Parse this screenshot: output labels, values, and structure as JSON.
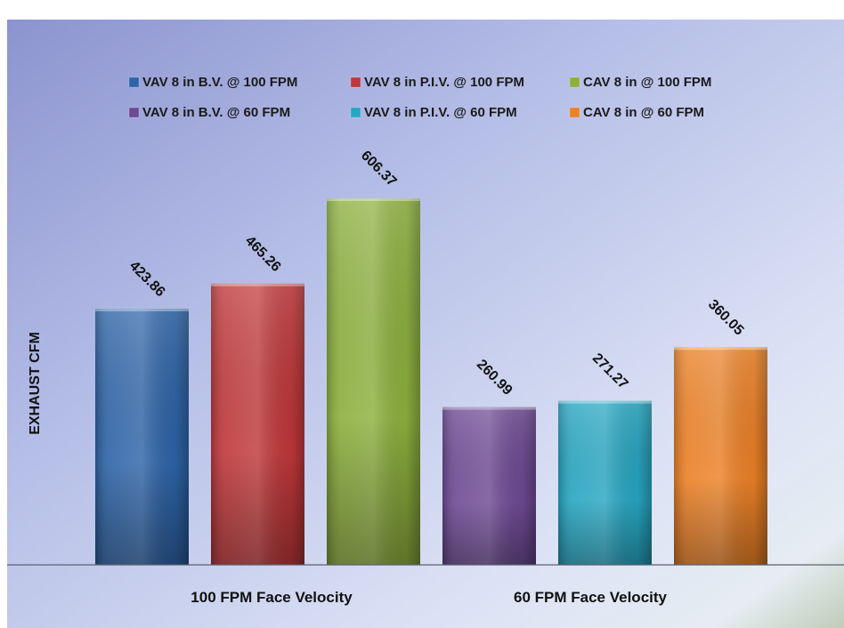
{
  "chart_data": {
    "type": "bar",
    "title": "",
    "xlabel": "",
    "ylabel": "EXHAUST   CFM",
    "categories": [
      "100 FPM Face Velocity",
      "60 FPM Face Velocity"
    ],
    "ylim": [
      0,
      700
    ],
    "grid": false,
    "legend_position": "top",
    "series": [
      {
        "name": "VAV 8 in B.V. @ 100 FPM",
        "color": "#2E64A8",
        "values": [
          423.86,
          null
        ],
        "label": "423.86"
      },
      {
        "name": "VAV 8 in P.I.V. @ 100 FPM",
        "color": "#C0383A",
        "values": [
          465.26,
          null
        ],
        "label": "465.26"
      },
      {
        "name": "CAV 8 in @ 100 FPM",
        "color": "#8DB03D",
        "values": [
          606.37,
          null
        ],
        "label": "606.37"
      },
      {
        "name": "VAV 8 in B.V. @ 60 FPM",
        "color": "#6E4A94",
        "values": [
          null,
          260.99
        ],
        "label": "260.99"
      },
      {
        "name": "VAV 8 in P.I.V. @ 60 FPM",
        "color": "#27A6C2",
        "values": [
          null,
          271.27
        ],
        "label": "271.27"
      },
      {
        "name": "CAV 8 in @ 60 FPM",
        "color": "#EC8127",
        "values": [
          null,
          360.05
        ],
        "label": "360.05"
      }
    ]
  }
}
